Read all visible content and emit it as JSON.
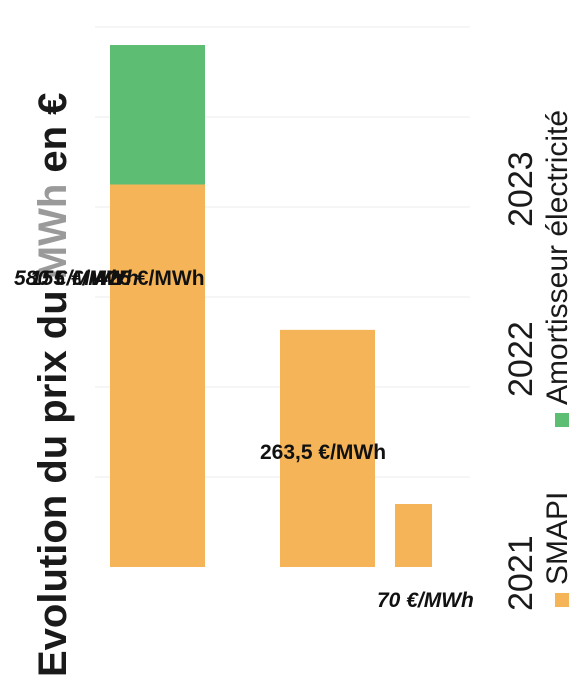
{
  "chart_data": {
    "type": "bar",
    "stacked": true,
    "orientation": "horizontal",
    "title_parts": [
      "Evolution du prix du ",
      "MWh",
      " en €"
    ],
    "categories": [
      "2021",
      "2022",
      "2023"
    ],
    "series": [
      {
        "name": "SMAPI",
        "color": "#F5B458",
        "values": [
          70,
          263.5,
          425
        ]
      },
      {
        "name": "Amortisseur électricité",
        "color": "#5DBE73",
        "values": [
          0,
          0,
          155
        ]
      }
    ],
    "data_labels": {
      "smapi": [
        "70 €/MWh",
        "263,5 €/MWh",
        "425 €/MWh"
      ],
      "amortisseur_2023": "155 €/MWh",
      "total_2023": "580 €/MWh"
    },
    "xlim": [
      0,
      600
    ],
    "grid": true,
    "legend_position": "bottom"
  }
}
